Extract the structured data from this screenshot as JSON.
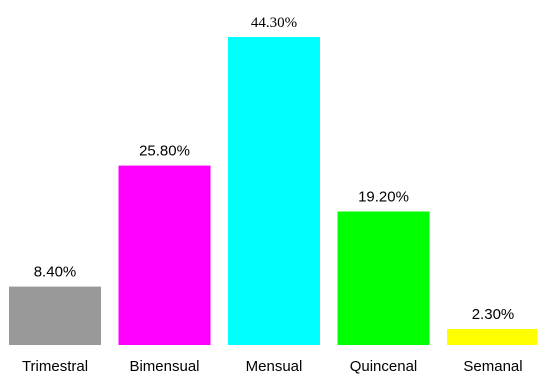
{
  "chart_data": {
    "type": "bar",
    "categories": [
      "Trimestral",
      "Bimensual",
      "Mensual",
      "Quincenal",
      "Semanal"
    ],
    "values": [
      8.4,
      25.8,
      44.3,
      19.2,
      2.3
    ],
    "value_labels": [
      "8.40%",
      "25.80%",
      "44.30%",
      "19.20%",
      "2.30%"
    ],
    "colors": [
      "#999999",
      "#ff00ff",
      "#00ffff",
      "#00ff00",
      "#ffff00"
    ],
    "title": "",
    "xlabel": "",
    "ylabel": "",
    "ylim": [
      0,
      44.3
    ],
    "grid": false,
    "legend": "none"
  }
}
